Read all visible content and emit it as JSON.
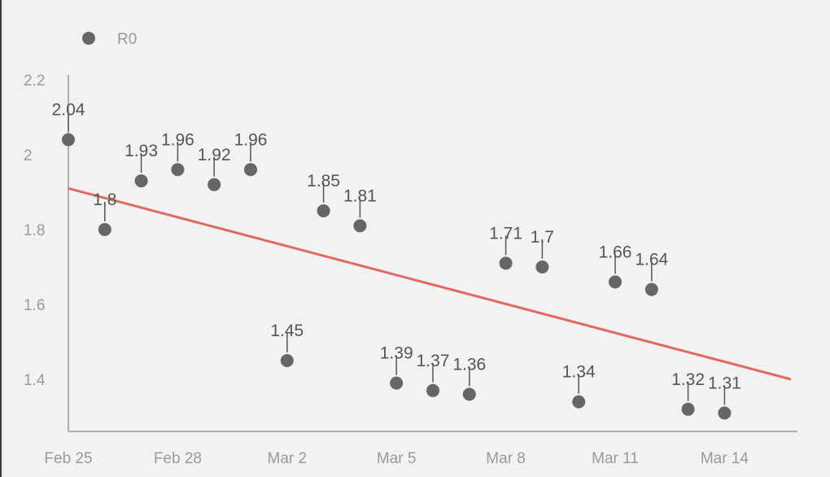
{
  "chart_data": {
    "type": "scatter",
    "title": "",
    "xlabel": "",
    "ylabel": "",
    "legend": {
      "position": "top-left",
      "entries": [
        "R0"
      ]
    },
    "grid": false,
    "ylim": [
      1.25,
      2.2
    ],
    "y_ticks": [
      "1.4",
      "1.6",
      "1.8",
      "2",
      "2.2"
    ],
    "x_ticks": [
      "Feb 25",
      "Feb 28",
      "Mar 2",
      "Mar 5",
      "Mar 8",
      "Mar 11",
      "Mar 14"
    ],
    "series": [
      {
        "name": "R0",
        "color": "#666666",
        "points": [
          {
            "x": "Feb 25",
            "y": 2.04,
            "label": "2.04"
          },
          {
            "x": "Feb 26",
            "y": 1.8,
            "label": "1.8"
          },
          {
            "x": "Feb 27",
            "y": 1.93,
            "label": "1.93"
          },
          {
            "x": "Feb 28",
            "y": 1.96,
            "label": "1.96"
          },
          {
            "x": "Feb 29",
            "y": 1.92,
            "label": "1.92"
          },
          {
            "x": "Mar 1",
            "y": 1.96,
            "label": "1.96"
          },
          {
            "x": "Mar 2",
            "y": 1.45,
            "label": "1.45"
          },
          {
            "x": "Mar 3",
            "y": 1.85,
            "label": "1.85"
          },
          {
            "x": "Mar 4",
            "y": 1.81,
            "label": "1.81"
          },
          {
            "x": "Mar 5",
            "y": 1.39,
            "label": "1.39"
          },
          {
            "x": "Mar 6",
            "y": 1.37,
            "label": "1.37"
          },
          {
            "x": "Mar 7",
            "y": 1.36,
            "label": "1.36"
          },
          {
            "x": "Mar 8",
            "y": 1.71,
            "label": "1.71"
          },
          {
            "x": "Mar 9",
            "y": 1.7,
            "label": "1.7"
          },
          {
            "x": "Mar 10",
            "y": 1.34,
            "label": "1.34"
          },
          {
            "x": "Mar 11",
            "y": 1.66,
            "label": "1.66"
          },
          {
            "x": "Mar 12",
            "y": 1.64,
            "label": "1.64"
          },
          {
            "x": "Mar 13",
            "y": 1.32,
            "label": "1.32"
          },
          {
            "x": "Mar 14",
            "y": 1.31,
            "label": "1.31"
          }
        ]
      }
    ],
    "trendline": {
      "type": "linear",
      "color": "#e06a62",
      "start": {
        "x": "Feb 25",
        "y": 1.91
      },
      "end": {
        "x": "Mar 16",
        "y": 1.4
      }
    }
  }
}
